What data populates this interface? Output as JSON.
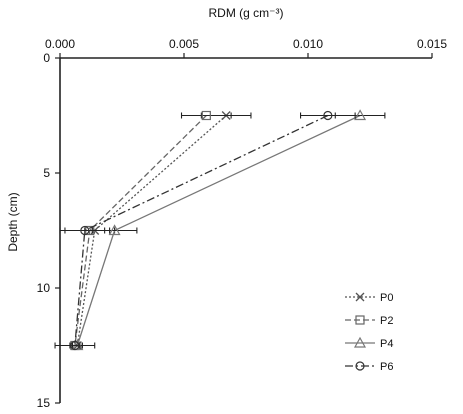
{
  "chart_data": {
    "type": "line",
    "xlabel": "RDM (g cm⁻³)",
    "ylabel": "Depth (cm)",
    "x_axis_position": "top",
    "y_axis_inverted": true,
    "xlim": [
      0,
      0.015
    ],
    "ylim": [
      0,
      15
    ],
    "x_ticks": [
      0.0,
      0.005,
      0.01,
      0.015
    ],
    "x_tick_labels": [
      "0.000",
      "0.005",
      "0.010",
      "0.015"
    ],
    "y_ticks": [
      0,
      5,
      10,
      15
    ],
    "y_tick_labels": [
      "0",
      "5",
      "10",
      "15"
    ],
    "grid": false,
    "legend_position": "bottom-right",
    "series": [
      {
        "name": "P0",
        "marker": "x",
        "line_style": "dotted",
        "color": "#555555",
        "points": [
          {
            "depth": 2.5,
            "rdm": 0.0067,
            "err": 0.001
          },
          {
            "depth": 7.5,
            "rdm": 0.0014,
            "err": 0.0004
          },
          {
            "depth": 12.5,
            "rdm": 0.0007,
            "err": 0.0002
          }
        ]
      },
      {
        "name": "P2",
        "marker": "square",
        "line_style": "dashed",
        "color": "#666666",
        "points": [
          {
            "depth": 2.5,
            "rdm": 0.0059,
            "err": 0.001
          },
          {
            "depth": 7.5,
            "rdm": 0.0012,
            "err": 0.001
          },
          {
            "depth": 12.5,
            "rdm": 0.0006,
            "err": 0.0008
          }
        ]
      },
      {
        "name": "P4",
        "marker": "triangle",
        "line_style": "solid",
        "color": "#777777",
        "points": [
          {
            "depth": 2.5,
            "rdm": 0.0121,
            "err": 0.001
          },
          {
            "depth": 7.5,
            "rdm": 0.0022,
            "err": 0.0009
          },
          {
            "depth": 12.5,
            "rdm": 0.0007,
            "err": 0.0002
          }
        ]
      },
      {
        "name": "P6",
        "marker": "circle",
        "line_style": "dashdot",
        "color": "#333333",
        "points": [
          {
            "depth": 2.5,
            "rdm": 0.0108,
            "err": 0.0011
          },
          {
            "depth": 7.5,
            "rdm": 0.001,
            "err": 0.001
          },
          {
            "depth": 12.5,
            "rdm": 0.0006,
            "err": 0.0002
          }
        ]
      }
    ]
  }
}
